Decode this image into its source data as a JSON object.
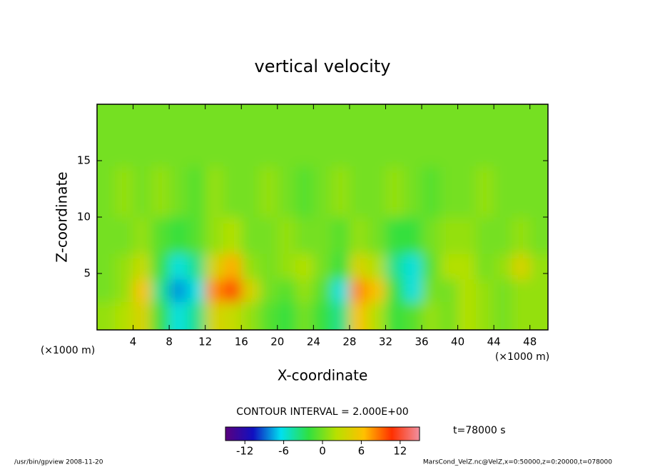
{
  "chart_data": {
    "type": "contour",
    "title": "vertical velocity",
    "xlabel": "X-coordinate",
    "ylabel": "Z-coordinate",
    "x_unit": "(×1000 m)",
    "y_unit": "(×1000 m)",
    "contour_note": "CONTOUR INTERVAL = 2.000E+00",
    "time_label": "t=78000 s",
    "footer_left": "/usr/bin/gpview  2008-11-20",
    "footer_right": "MarsCond_VelZ.nc@VelZ,x=0:50000,z=0:20000,t=078000",
    "xlim": [
      0,
      50
    ],
    "xticks": [
      4,
      8,
      12,
      16,
      20,
      24,
      28,
      32,
      36,
      40,
      44,
      48
    ],
    "ylim": [
      0,
      20
    ],
    "yticks": [
      5,
      10,
      15
    ],
    "x": [
      1,
      3,
      5,
      7,
      9,
      11,
      13,
      15,
      17,
      19,
      21,
      23,
      25,
      27,
      29,
      31,
      33,
      35,
      37,
      39,
      41,
      43,
      45,
      47,
      49
    ],
    "z": [
      1.5,
      3.5,
      5.5,
      8,
      12,
      17
    ],
    "values": [
      [
        1,
        2,
        4,
        -2,
        -6,
        -4,
        4,
        3,
        1,
        -1,
        -2,
        0,
        -2,
        -4,
        6,
        2,
        -2,
        -1,
        1,
        0,
        2,
        1,
        0,
        1,
        1
      ],
      [
        0,
        1,
        6,
        -4,
        -8,
        -6,
        8,
        10,
        4,
        0,
        -1,
        1,
        -1,
        -6,
        8,
        6,
        -2,
        -6,
        0,
        0,
        2,
        1,
        0,
        1,
        1
      ],
      [
        0,
        1,
        3,
        -2,
        -6,
        -4,
        4,
        7,
        1,
        0,
        1,
        2,
        0,
        -2,
        4,
        2,
        -4,
        -6,
        -1,
        2,
        2,
        0,
        1,
        4,
        1
      ],
      [
        0,
        0,
        1,
        -1,
        -2,
        -1,
        1,
        2,
        0,
        0,
        1,
        0,
        0,
        -1,
        1,
        0,
        -2,
        -2,
        0,
        1,
        1,
        0,
        0,
        1,
        0
      ],
      [
        0,
        1,
        0,
        1,
        0,
        -1,
        1,
        0,
        0,
        1,
        0,
        -1,
        0,
        1,
        0,
        0,
        1,
        0,
        -1,
        0,
        0,
        1,
        0,
        0,
        0
      ],
      [
        0,
        0,
        0,
        0,
        0,
        0,
        0,
        0,
        0,
        0,
        0,
        0,
        0,
        0,
        0,
        0,
        0,
        0,
        0,
        0,
        0,
        0,
        0,
        0,
        0
      ]
    ],
    "clim": [
      -15,
      15
    ],
    "cticks": [
      -12,
      -6,
      0,
      6,
      12
    ],
    "colormap": [
      "#5a007f",
      "#1010c0",
      "#00e0f0",
      "#30e040",
      "#b8e000",
      "#ffc000",
      "#ff3000",
      "#f090a0"
    ]
  }
}
